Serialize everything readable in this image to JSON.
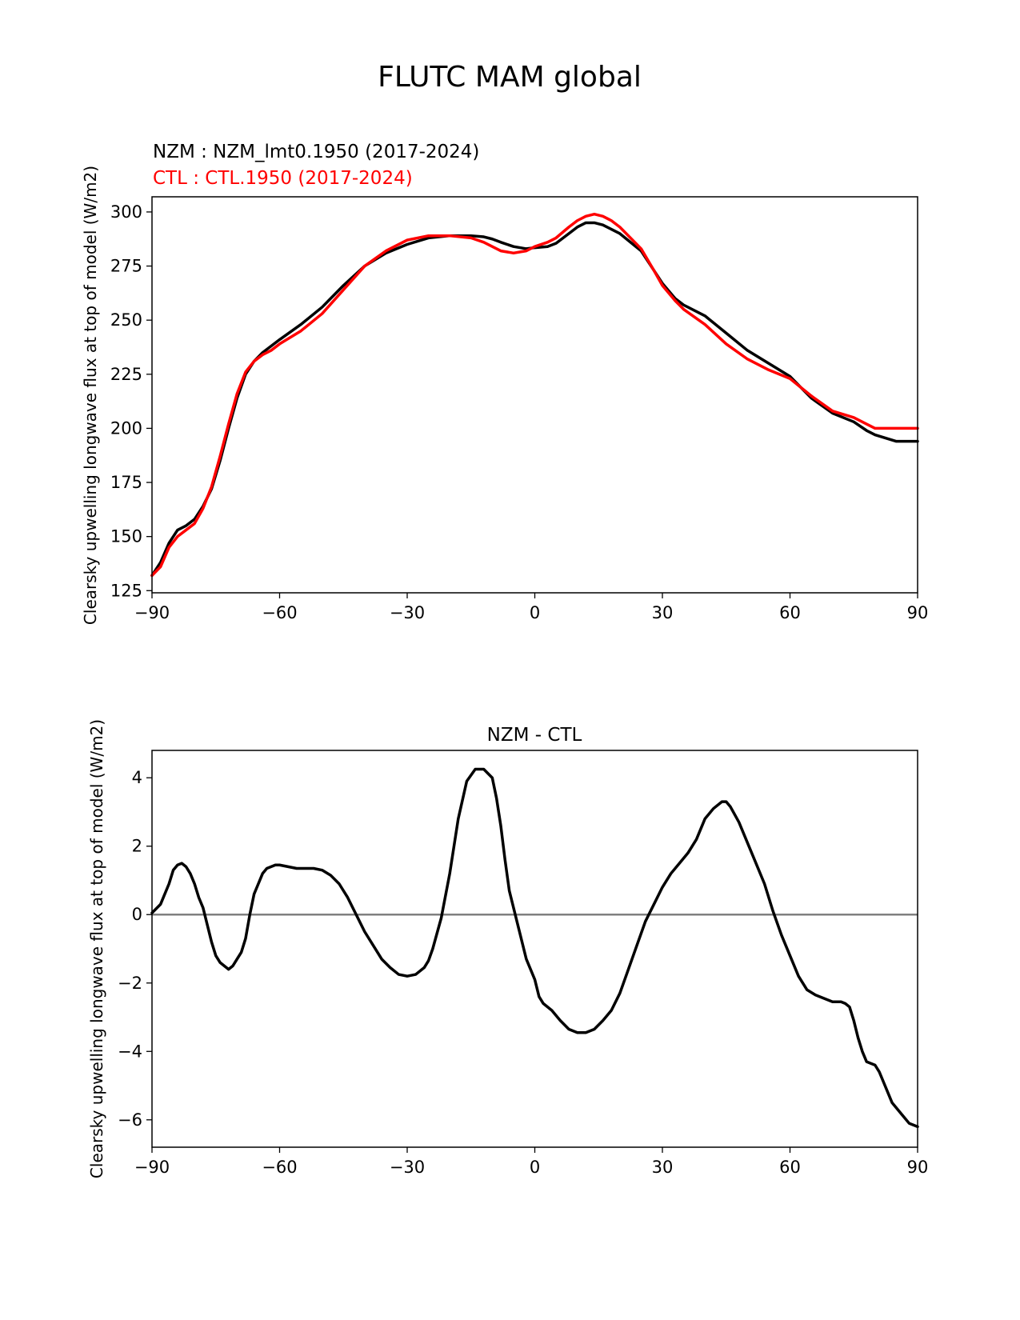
{
  "figure": {
    "title": "FLUTC MAM global"
  },
  "chart_data": [
    {
      "type": "line",
      "legend": [
        {
          "label": "NZM  : NZM_lmt0.1950 (2017-2024)",
          "color": "#000000"
        },
        {
          "label": "CTL : CTL.1950 (2017-2024)",
          "color": "#ff0000"
        }
      ],
      "title": "",
      "xlabel": "",
      "ylabel": "Clearsky upwelling longwave flux at top of model (W/m2)",
      "xlim": [
        -90,
        90
      ],
      "ylim": [
        124,
        307
      ],
      "xticks": [
        -90,
        -60,
        -30,
        0,
        30,
        60,
        90
      ],
      "xtick_labels": [
        "−90",
        "−60",
        "−30",
        "0",
        "30",
        "60",
        "90"
      ],
      "yticks": [
        125,
        150,
        175,
        200,
        225,
        250,
        275,
        300
      ],
      "ytick_labels": [
        "125",
        "150",
        "175",
        "200",
        "225",
        "250",
        "275",
        "300"
      ],
      "series": [
        {
          "name": "NZM",
          "color": "#000000",
          "x": [
            -90,
            -88,
            -86,
            -84,
            -82,
            -80,
            -78,
            -76,
            -74,
            -72,
            -70,
            -68,
            -66,
            -64,
            -62,
            -60,
            -55,
            -50,
            -45,
            -40,
            -35,
            -30,
            -25,
            -20,
            -15,
            -12,
            -10,
            -8,
            -5,
            -2,
            0,
            3,
            5,
            8,
            10,
            12,
            14,
            16,
            18,
            20,
            25,
            28,
            30,
            33,
            35,
            40,
            45,
            50,
            55,
            60,
            65,
            70,
            75,
            78,
            80,
            85,
            90
          ],
          "y": [
            132,
            138,
            147,
            153,
            155,
            158,
            164,
            172,
            185,
            200,
            214,
            225,
            231,
            235,
            238,
            241,
            248,
            256,
            266,
            275,
            281,
            285,
            288,
            289,
            289,
            288.5,
            287.5,
            286,
            284,
            283,
            283.5,
            284,
            285.5,
            290,
            293,
            295,
            295,
            294,
            292,
            290,
            282,
            273,
            267,
            260,
            257,
            252,
            244,
            236,
            230,
            224,
            214,
            207,
            203,
            199,
            197,
            194,
            194
          ]
        },
        {
          "name": "CTL",
          "color": "#ff0000",
          "x": [
            -90,
            -88,
            -86,
            -84,
            -82,
            -80,
            -78,
            -76,
            -74,
            -72,
            -70,
            -68,
            -66,
            -64,
            -62,
            -60,
            -55,
            -50,
            -45,
            -40,
            -35,
            -30,
            -25,
            -20,
            -15,
            -12,
            -10,
            -8,
            -5,
            -2,
            0,
            3,
            5,
            8,
            10,
            12,
            14,
            16,
            18,
            20,
            25,
            28,
            30,
            33,
            35,
            40,
            45,
            50,
            55,
            60,
            65,
            70,
            75,
            78,
            80,
            85,
            90
          ],
          "y": [
            132,
            136,
            145,
            150,
            153,
            156,
            163,
            173,
            187,
            202,
            216,
            226,
            231,
            234,
            236,
            239,
            245,
            253,
            264,
            275,
            282,
            287,
            289,
            289,
            288,
            286,
            284,
            282,
            281,
            282,
            284,
            286,
            288,
            293,
            296,
            298,
            299,
            298,
            296,
            293,
            283,
            273,
            266,
            259,
            255,
            248,
            239,
            232,
            227,
            223,
            215,
            208,
            205,
            202,
            200,
            200,
            200
          ]
        }
      ]
    },
    {
      "type": "line",
      "title": "NZM - CTL",
      "xlabel": "",
      "ylabel": "Clearsky upwelling longwave flux at top of model (W/m2)",
      "xlim": [
        -90,
        90
      ],
      "ylim": [
        -6.8,
        4.8
      ],
      "xticks": [
        -90,
        -60,
        -30,
        0,
        30,
        60,
        90
      ],
      "xtick_labels": [
        "−90",
        "−60",
        "−30",
        "0",
        "30",
        "60",
        "90"
      ],
      "yticks": [
        -6,
        -4,
        -2,
        0,
        2,
        4
      ],
      "ytick_labels": [
        "−6",
        "−4",
        "−2",
        "0",
        "2",
        "4"
      ],
      "reference_line": {
        "y": 0,
        "color": "#808080"
      },
      "series": [
        {
          "name": "NZM - CTL",
          "color": "#000000",
          "x": [
            -90,
            -88,
            -86,
            -85,
            -84,
            -83,
            -82,
            -81,
            -80,
            -79,
            -78,
            -77,
            -76,
            -75,
            -74,
            -73,
            -72,
            -71,
            -70,
            -69,
            -68,
            -67,
            -66,
            -65,
            -64,
            -63,
            -62,
            -61,
            -60,
            -58,
            -56,
            -54,
            -52,
            -50,
            -48,
            -46,
            -44,
            -42,
            -40,
            -38,
            -36,
            -34,
            -32,
            -30,
            -28,
            -26,
            -25,
            -24,
            -22,
            -20,
            -18,
            -16,
            -14,
            -12,
            -10,
            -9,
            -8,
            -7,
            -6,
            -4,
            -2,
            0,
            1,
            2,
            4,
            6,
            8,
            10,
            12,
            13,
            14,
            16,
            18,
            20,
            22,
            24,
            26,
            28,
            30,
            32,
            34,
            36,
            38,
            40,
            42,
            44,
            45,
            46,
            48,
            50,
            52,
            54,
            56,
            58,
            60,
            62,
            64,
            66,
            68,
            70,
            72,
            73,
            74,
            75,
            76,
            77,
            78,
            79,
            80,
            81,
            82,
            83,
            84,
            86,
            88,
            89,
            90
          ],
          "y": [
            0.05,
            0.3,
            0.9,
            1.3,
            1.45,
            1.5,
            1.4,
            1.2,
            0.9,
            0.5,
            0.2,
            -0.3,
            -0.8,
            -1.2,
            -1.4,
            -1.5,
            -1.6,
            -1.5,
            -1.3,
            -1.1,
            -0.7,
            0,
            0.6,
            0.9,
            1.2,
            1.35,
            1.4,
            1.45,
            1.45,
            1.4,
            1.35,
            1.35,
            1.35,
            1.3,
            1.15,
            0.9,
            0.5,
            0,
            -0.5,
            -0.9,
            -1.3,
            -1.55,
            -1.75,
            -1.8,
            -1.75,
            -1.55,
            -1.35,
            -1.0,
            -0.1,
            1.2,
            2.8,
            3.9,
            4.25,
            4.25,
            4.0,
            3.4,
            2.6,
            1.6,
            0.7,
            -0.3,
            -1.3,
            -1.9,
            -2.4,
            -2.6,
            -2.8,
            -3.1,
            -3.35,
            -3.45,
            -3.45,
            -3.4,
            -3.35,
            -3.1,
            -2.8,
            -2.3,
            -1.6,
            -0.9,
            -0.2,
            0.3,
            0.8,
            1.2,
            1.5,
            1.8,
            2.2,
            2.8,
            3.1,
            3.3,
            3.3,
            3.15,
            2.7,
            2.1,
            1.5,
            0.9,
            0.1,
            -0.6,
            -1.2,
            -1.8,
            -2.2,
            -2.35,
            -2.45,
            -2.55,
            -2.55,
            -2.6,
            -2.7,
            -3.1,
            -3.6,
            -4.0,
            -4.3,
            -4.35,
            -4.4,
            -4.6,
            -4.9,
            -5.2,
            -5.5,
            -5.8,
            -6.1,
            -6.15,
            -6.2
          ]
        }
      ]
    }
  ]
}
